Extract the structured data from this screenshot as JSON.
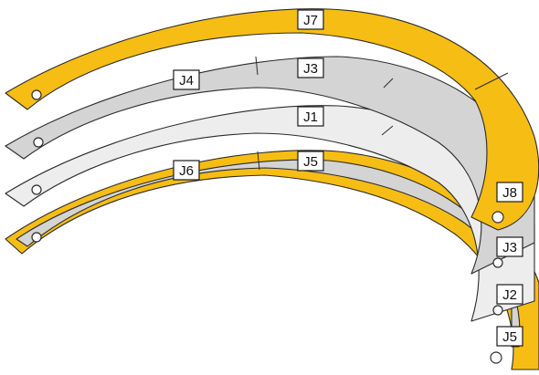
{
  "colors": {
    "yellow": "#f6bd14",
    "grey": "#d4d4d4",
    "light": "#ededed",
    "outline": "#2b2b2b"
  },
  "rings": {
    "ring_top": {
      "label_center": "J7",
      "label_end": "J8"
    },
    "ring_second": {
      "label_left": "J4",
      "label_center": "J3",
      "label_end": "J3"
    },
    "ring_third": {
      "label_center": "J1",
      "label_end": "J2"
    },
    "ring_bottom": {
      "label_left": "J6",
      "label_center": "J5",
      "label_end": "J5"
    }
  }
}
